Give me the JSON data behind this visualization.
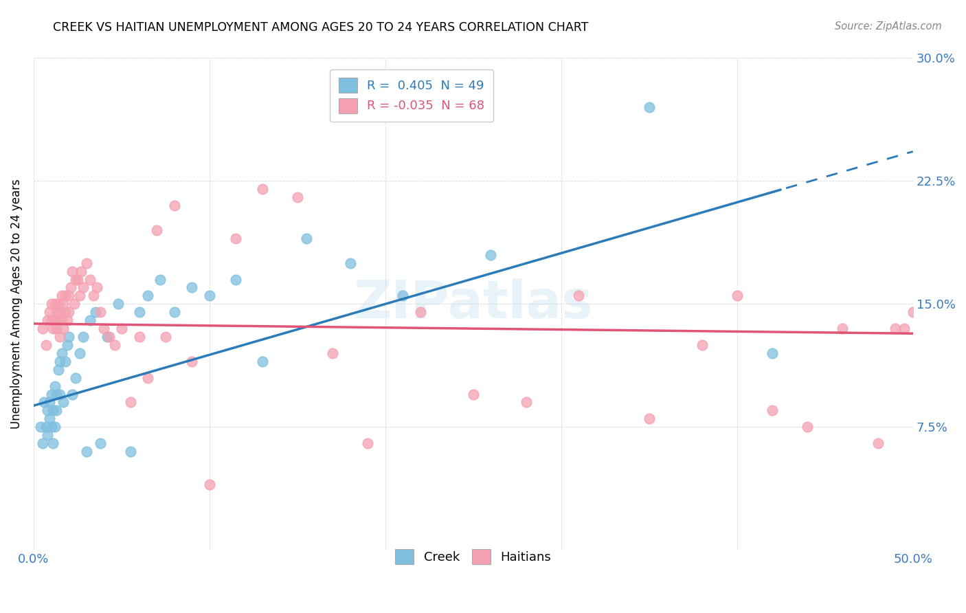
{
  "title": "CREEK VS HAITIAN UNEMPLOYMENT AMONG AGES 20 TO 24 YEARS CORRELATION CHART",
  "source": "Source: ZipAtlas.com",
  "ylabel": "Unemployment Among Ages 20 to 24 years",
  "xlim": [
    0.0,
    0.5
  ],
  "ylim": [
    0.0,
    0.3
  ],
  "xticks": [
    0.0,
    0.1,
    0.2,
    0.3,
    0.4,
    0.5
  ],
  "xticklabels": [
    "0.0%",
    "",
    "",
    "",
    "",
    "50.0%"
  ],
  "yticks": [
    0.0,
    0.075,
    0.15,
    0.225,
    0.3
  ],
  "yticklabels_right": [
    "",
    "7.5%",
    "15.0%",
    "22.5%",
    "30.0%"
  ],
  "creek_R": 0.405,
  "creek_N": 49,
  "haitian_R": -0.035,
  "haitian_N": 68,
  "creek_color": "#7fbfdf",
  "haitian_color": "#f4a0b0",
  "creek_line_color": "#2b7bba",
  "haitian_line_color": "#e05575",
  "creek_line_intercept": 0.088,
  "creek_line_slope": 0.31,
  "haitian_line_intercept": 0.138,
  "haitian_line_slope": -0.012,
  "creek_x": [
    0.004,
    0.005,
    0.006,
    0.007,
    0.008,
    0.008,
    0.009,
    0.009,
    0.01,
    0.01,
    0.011,
    0.011,
    0.012,
    0.012,
    0.013,
    0.013,
    0.014,
    0.015,
    0.015,
    0.016,
    0.017,
    0.018,
    0.019,
    0.02,
    0.022,
    0.024,
    0.026,
    0.028,
    0.03,
    0.032,
    0.035,
    0.038,
    0.042,
    0.048,
    0.055,
    0.06,
    0.065,
    0.072,
    0.08,
    0.09,
    0.1,
    0.115,
    0.13,
    0.155,
    0.18,
    0.21,
    0.26,
    0.35,
    0.42
  ],
  "creek_y": [
    0.075,
    0.065,
    0.09,
    0.075,
    0.085,
    0.07,
    0.09,
    0.08,
    0.095,
    0.075,
    0.085,
    0.065,
    0.1,
    0.075,
    0.095,
    0.085,
    0.11,
    0.095,
    0.115,
    0.12,
    0.09,
    0.115,
    0.125,
    0.13,
    0.095,
    0.105,
    0.12,
    0.13,
    0.06,
    0.14,
    0.145,
    0.065,
    0.13,
    0.15,
    0.06,
    0.145,
    0.155,
    0.165,
    0.145,
    0.16,
    0.155,
    0.165,
    0.115,
    0.19,
    0.175,
    0.155,
    0.18,
    0.27,
    0.12
  ],
  "haitian_x": [
    0.005,
    0.007,
    0.008,
    0.009,
    0.01,
    0.01,
    0.011,
    0.012,
    0.012,
    0.013,
    0.013,
    0.014,
    0.014,
    0.015,
    0.015,
    0.016,
    0.016,
    0.017,
    0.017,
    0.018,
    0.018,
    0.019,
    0.02,
    0.02,
    0.021,
    0.022,
    0.023,
    0.024,
    0.025,
    0.026,
    0.027,
    0.028,
    0.03,
    0.032,
    0.034,
    0.036,
    0.038,
    0.04,
    0.043,
    0.046,
    0.05,
    0.055,
    0.06,
    0.065,
    0.07,
    0.075,
    0.08,
    0.09,
    0.1,
    0.115,
    0.13,
    0.15,
    0.17,
    0.19,
    0.22,
    0.25,
    0.28,
    0.31,
    0.35,
    0.38,
    0.4,
    0.42,
    0.44,
    0.46,
    0.48,
    0.49,
    0.495,
    0.5
  ],
  "haitian_y": [
    0.135,
    0.125,
    0.14,
    0.145,
    0.14,
    0.15,
    0.135,
    0.15,
    0.14,
    0.145,
    0.135,
    0.15,
    0.14,
    0.145,
    0.13,
    0.155,
    0.14,
    0.15,
    0.135,
    0.145,
    0.155,
    0.14,
    0.155,
    0.145,
    0.16,
    0.17,
    0.15,
    0.165,
    0.165,
    0.155,
    0.17,
    0.16,
    0.175,
    0.165,
    0.155,
    0.16,
    0.145,
    0.135,
    0.13,
    0.125,
    0.135,
    0.09,
    0.13,
    0.105,
    0.195,
    0.13,
    0.21,
    0.115,
    0.04,
    0.19,
    0.22,
    0.215,
    0.12,
    0.065,
    0.145,
    0.095,
    0.09,
    0.155,
    0.08,
    0.125,
    0.155,
    0.085,
    0.075,
    0.135,
    0.065,
    0.135,
    0.135,
    0.145
  ]
}
